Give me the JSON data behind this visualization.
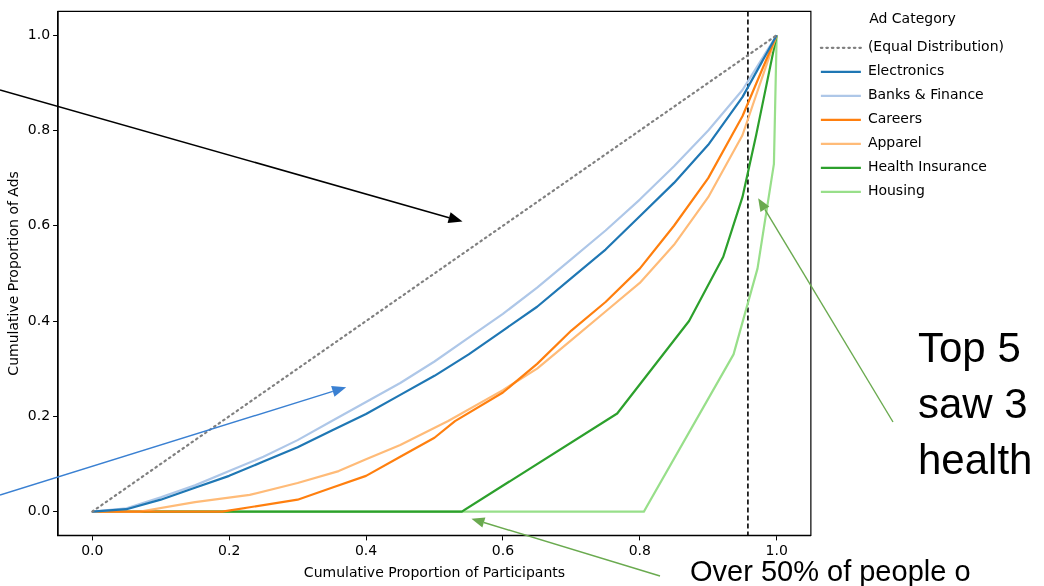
{
  "chart_data": {
    "type": "line",
    "xlabel": "Cumulative Proportion of Participants",
    "ylabel": "Cumulative Proportion of Ads",
    "legend_title": "Ad Category",
    "legend": "top right",
    "marker": "none",
    "xlim": [
      -0.05,
      1.05
    ],
    "ylim": [
      -0.05,
      1.05
    ],
    "xticks": [
      {
        "value": 0,
        "label": "0.0"
      },
      {
        "value": 0.2,
        "label": "0.2"
      },
      {
        "value": 0.4,
        "label": "0.4"
      },
      {
        "value": 0.6,
        "label": "0.6"
      },
      {
        "value": 0.8,
        "label": "0.8"
      },
      {
        "value": 1,
        "label": "1.0"
      }
    ],
    "yticks": [
      {
        "value": 0,
        "label": "0.0"
      },
      {
        "value": 0.2,
        "label": "0.2"
      },
      {
        "value": 0.4,
        "label": "0.4"
      },
      {
        "value": 0.6,
        "label": "0.6"
      },
      {
        "value": 0.8,
        "label": "0.8"
      },
      {
        "value": 1,
        "label": "1.0"
      }
    ],
    "series": [
      {
        "name": "(Equal Distribution)",
        "color": "#808080",
        "line_style": "dotted",
        "x": [
          0,
          1
        ],
        "values": [
          0,
          1
        ]
      },
      {
        "name": "Electronics",
        "color": "#1f77b4",
        "x": [
          0,
          0.05,
          0.1,
          0.15,
          0.2,
          0.25,
          0.3,
          0.35,
          0.4,
          0.45,
          0.5,
          0.55,
          0.6,
          0.65,
          0.7,
          0.75,
          0.8,
          0.85,
          0.9,
          0.95,
          1
        ],
        "values": [
          0,
          0.005,
          0.025,
          0.05,
          0.075,
          0.105,
          0.135,
          0.17,
          0.205,
          0.245,
          0.285,
          0.33,
          0.38,
          0.43,
          0.49,
          0.55,
          0.62,
          0.69,
          0.77,
          0.87,
          1
        ]
      },
      {
        "name": "Banks & Finance",
        "color": "#aec7e8",
        "x": [
          0,
          0.05,
          0.1,
          0.15,
          0.2,
          0.25,
          0.3,
          0.35,
          0.4,
          0.45,
          0.5,
          0.55,
          0.6,
          0.65,
          0.7,
          0.75,
          0.8,
          0.85,
          0.9,
          0.95,
          1
        ],
        "values": [
          0,
          0.007,
          0.03,
          0.055,
          0.085,
          0.115,
          0.15,
          0.19,
          0.23,
          0.27,
          0.315,
          0.365,
          0.415,
          0.47,
          0.53,
          0.59,
          0.655,
          0.725,
          0.8,
          0.885,
          1
        ]
      },
      {
        "name": "Careers",
        "color": "#ff7f0e",
        "x": [
          0,
          0.19,
          0.3,
          0.35,
          0.4,
          0.45,
          0.5,
          0.53,
          0.6,
          0.65,
          0.7,
          0.75,
          0.8,
          0.85,
          0.9,
          0.95,
          1
        ],
        "values": [
          0,
          0,
          0.025,
          0.05,
          0.075,
          0.115,
          0.155,
          0.19,
          0.25,
          0.31,
          0.38,
          0.44,
          0.51,
          0.6,
          0.7,
          0.83,
          1
        ]
      },
      {
        "name": "Apparel",
        "color": "#ffbb78",
        "x": [
          0,
          0.07,
          0.15,
          0.23,
          0.3,
          0.36,
          0.4,
          0.45,
          0.52,
          0.6,
          0.65,
          0.7,
          0.75,
          0.8,
          0.85,
          0.9,
          0.95,
          1
        ],
        "values": [
          0,
          0,
          0.02,
          0.035,
          0.06,
          0.085,
          0.11,
          0.14,
          0.19,
          0.255,
          0.3,
          0.36,
          0.42,
          0.48,
          0.56,
          0.66,
          0.79,
          1
        ]
      },
      {
        "name": "Health Insurance",
        "color": "#2ca02c",
        "x": [
          0,
          0.54,
          0.767,
          0.872,
          0.922,
          0.95,
          0.97,
          1
        ],
        "values": [
          0,
          0,
          0.206,
          0.4,
          0.535,
          0.66,
          0.79,
          1
        ]
      },
      {
        "name": "Housing",
        "color": "#98df8a",
        "x": [
          0,
          0.806,
          0.937,
          0.972,
          0.996,
          1
        ],
        "values": [
          0,
          0,
          0.33,
          0.51,
          0.73,
          1
        ]
      }
    ],
    "ref_lines": [
      {
        "axis": "x",
        "value": 0.958,
        "color": "#000000",
        "line_style": "dashed"
      }
    ],
    "annotations": [
      "Top 5\nsaw 3\nhealth",
      "Over 50% of people o"
    ]
  }
}
